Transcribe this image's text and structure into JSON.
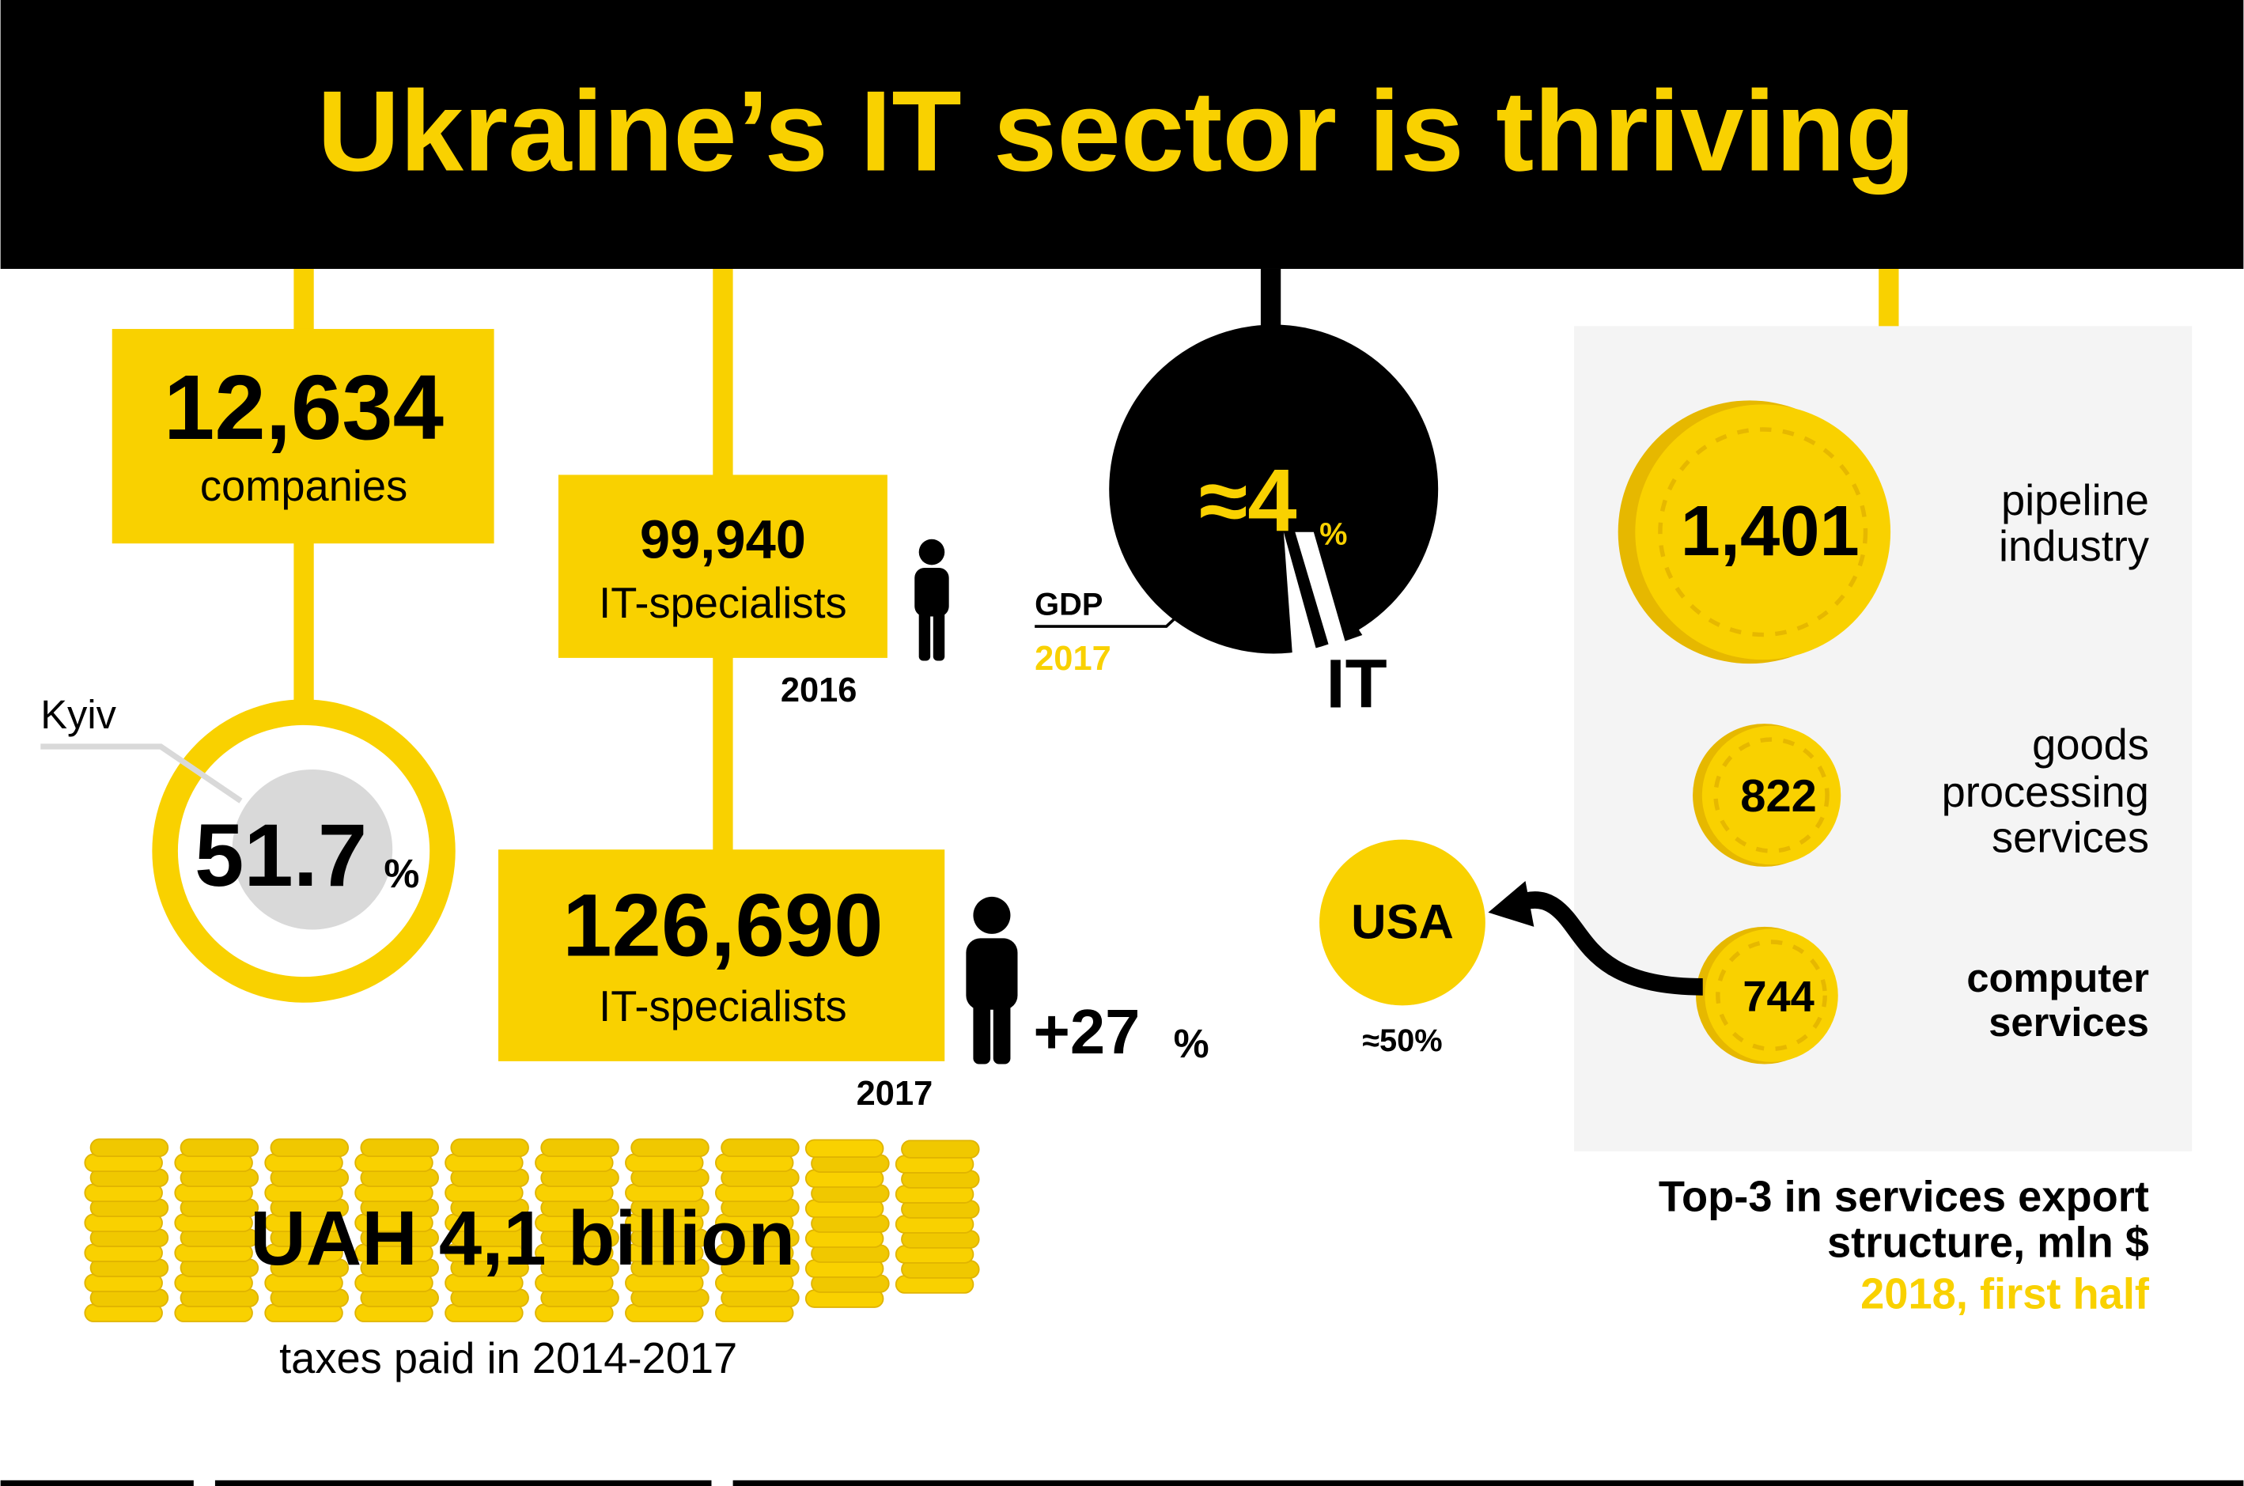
{
  "header": {
    "title": "Ukraine’s IT sector is thriving"
  },
  "companies": {
    "value": "12,634",
    "label": "companies"
  },
  "kyiv_share": {
    "region": "Kyiv",
    "value": "51.7",
    "unit": "%"
  },
  "specialists_2016": {
    "value": "99,940",
    "label": "IT-specialists",
    "year": "2016"
  },
  "specialists_2017": {
    "value": "126,690",
    "label": "IT-specialists",
    "year": "2017",
    "growth": "+27",
    "growth_unit": "%"
  },
  "gdp": {
    "label": "GDP",
    "year": "2017",
    "share": "≈4",
    "unit": "%",
    "sector": "IT"
  },
  "taxes": {
    "value": "UAH 4,1 billion",
    "label": "taxes paid in 2014-2017"
  },
  "exports": {
    "items": [
      {
        "value": "1,401",
        "label_lines": [
          "pipeline",
          "industry"
        ]
      },
      {
        "value": "822",
        "label_lines": [
          "goods",
          "processing",
          "services"
        ]
      },
      {
        "value": "744",
        "label_lines": [
          "computer",
          "services"
        ]
      }
    ],
    "destination": {
      "country": "USA",
      "share": "≈50%"
    },
    "caption_lines": [
      "Top-3 in services export",
      "structure, mln $"
    ],
    "period": "2018, first half"
  }
}
